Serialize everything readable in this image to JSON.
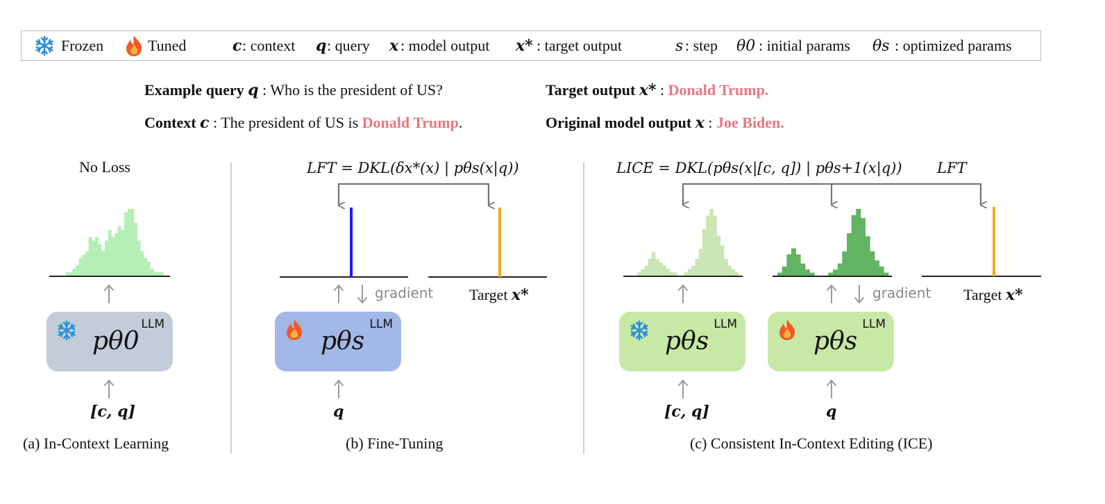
{
  "legend": {
    "frozen": "Frozen",
    "tuned": "Tuned",
    "c_sym": "c",
    "c_desc": ": context",
    "q_sym": "q",
    "q_desc": ": query",
    "x_sym": "x",
    "x_desc": ": model output",
    "xstar_sym": "x*",
    "xstar_desc": ": target output",
    "s_sym": "s",
    "s_desc": ": step",
    "theta0_sym": "θ0",
    "theta0_desc": ": initial params",
    "thetas_sym": "θs",
    "thetas_desc": ": optimized params"
  },
  "example": {
    "query_label": "Example query",
    "query_sym": "q",
    "query_text": " : Who is the president of US?",
    "context_label": "Context",
    "context_sym": "c",
    "context_text": " : The president of US is ",
    "context_answer": "Donald Trump",
    "context_end": ".",
    "target_label": "Target output",
    "target_sym": "x*",
    "target_sep": " : ",
    "target_value": "Donald Trump.",
    "orig_label": "Original model output",
    "orig_sym": "x",
    "orig_sep": " : ",
    "orig_value": "Joe Biden."
  },
  "panel_a": {
    "loss": "No Loss",
    "model": "pθ0",
    "llm": "LLM",
    "input": "[c, q]",
    "caption": "(a) In-Context Learning"
  },
  "panel_b": {
    "loss": "LFT = DKL(δx*(x) | pθs(x|q))",
    "model": "pθs",
    "llm": "LLM",
    "input": "q",
    "gradient": "gradient",
    "target": "Target",
    "target_sym": "x*",
    "caption": "(b) Fine-Tuning"
  },
  "panel_c": {
    "loss": "LICE = DKL(pθs(x|[c, q]) | pθs+1(x|q))",
    "loss_ft": "LFT",
    "model_frozen": "pθs",
    "model_tuned": "pθs",
    "llm": "LLM",
    "input_frozen": "[c, q]",
    "input_tuned": "q",
    "gradient": "gradient",
    "target": "Target",
    "target_sym": "x*",
    "caption": "(c) Consistent In-Context Editing (ICE)"
  },
  "colors": {
    "hist_a": "#b5efb5",
    "hist_c_light": "#cbe6b5",
    "hist_c_dark": "#62b462",
    "box_a": "#c3cdd9",
    "box_b": "#a3b8e6",
    "box_c": "#c8e8a6",
    "spike_blue": "#1a1aff",
    "spike_orange": "#f6a91a",
    "pink": "#e8777f",
    "snowflake": "#2a8fd8",
    "arrow": "#9a9a9a"
  },
  "chart_data": [
    {
      "type": "bar",
      "values": [
        1,
        1,
        2,
        3,
        5,
        6,
        7,
        11,
        10,
        11,
        9,
        7,
        10,
        13,
        11,
        12,
        14,
        13,
        18,
        19,
        19,
        15,
        10,
        7,
        5,
        4,
        2,
        1,
        1,
        1
      ]
    },
    {
      "type": "bar",
      "values": [
        1,
        2,
        3,
        5,
        7,
        5,
        4,
        3,
        2,
        1,
        1,
        0,
        0,
        1,
        2,
        3,
        5,
        8,
        14,
        18,
        20,
        18,
        12,
        9,
        5,
        3,
        2,
        1
      ]
    },
    {
      "type": "bar",
      "values": [
        1,
        3,
        7,
        9,
        7,
        4,
        2,
        1,
        0,
        0,
        0,
        1,
        2,
        4,
        8,
        14,
        20,
        22,
        19,
        13,
        8,
        5,
        3,
        1
      ]
    }
  ]
}
